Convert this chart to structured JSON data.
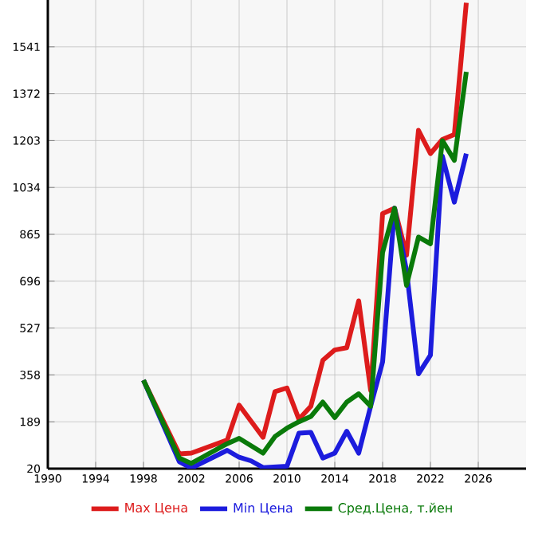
{
  "chart_data": {
    "type": "line",
    "xlim": [
      1990,
      2030
    ],
    "ylim": [
      20,
      1710
    ],
    "xticks": [
      1990,
      1994,
      1998,
      2002,
      2006,
      2010,
      2014,
      2018,
      2022,
      2026
    ],
    "yticks": [
      20,
      189,
      358,
      527,
      696,
      865,
      1034,
      1203,
      1372,
      1541
    ],
    "grid": true,
    "legend": "bottom",
    "marker": "none",
    "line_style": "solid",
    "series": [
      {
        "name": "Max Цена",
        "color": "#dd1c1c",
        "x": [
          1998,
          2001,
          2002,
          2005,
          2006,
          2008,
          2009,
          2010,
          2011,
          2012,
          2013,
          2014,
          2015,
          2016,
          2017,
          2018,
          2019,
          2020,
          2021,
          2022,
          2023,
          2024,
          2025
        ],
        "values": [
          339,
          73,
          76,
          123,
          249,
          133,
          298,
          311,
          198,
          245,
          411,
          448,
          456,
          625,
          302,
          940,
          959,
          790,
          1240,
          1156,
          1207,
          1225,
          1700
        ]
      },
      {
        "name": "Min Цена",
        "color": "#1c1cdd",
        "x": [
          1998,
          2001,
          2002,
          2005,
          2006,
          2007,
          2008,
          2010,
          2011,
          2012,
          2013,
          2014,
          2015,
          2016,
          2017,
          2018,
          2019,
          2020,
          2021,
          2022,
          2023,
          2024,
          2025
        ],
        "values": [
          339,
          45,
          22,
          86,
          61,
          48,
          24,
          29,
          148,
          151,
          58,
          76,
          155,
          76,
          245,
          405,
          959,
          734,
          362,
          429,
          1147,
          981,
          1156
        ]
      },
      {
        "name": "Сред.Цена, т.йен",
        "color": "#0a7a0a",
        "x": [
          1998,
          2001,
          2002,
          2005,
          2006,
          2008,
          2009,
          2010,
          2011,
          2012,
          2013,
          2014,
          2015,
          2016,
          2017,
          2018,
          2019,
          2020,
          2021,
          2022,
          2023,
          2024,
          2025
        ],
        "values": [
          339,
          58,
          39,
          110,
          129,
          76,
          136,
          166,
          189,
          208,
          260,
          204,
          260,
          290,
          245,
          800,
          959,
          681,
          855,
          831,
          1203,
          1132,
          1451
        ]
      }
    ]
  }
}
